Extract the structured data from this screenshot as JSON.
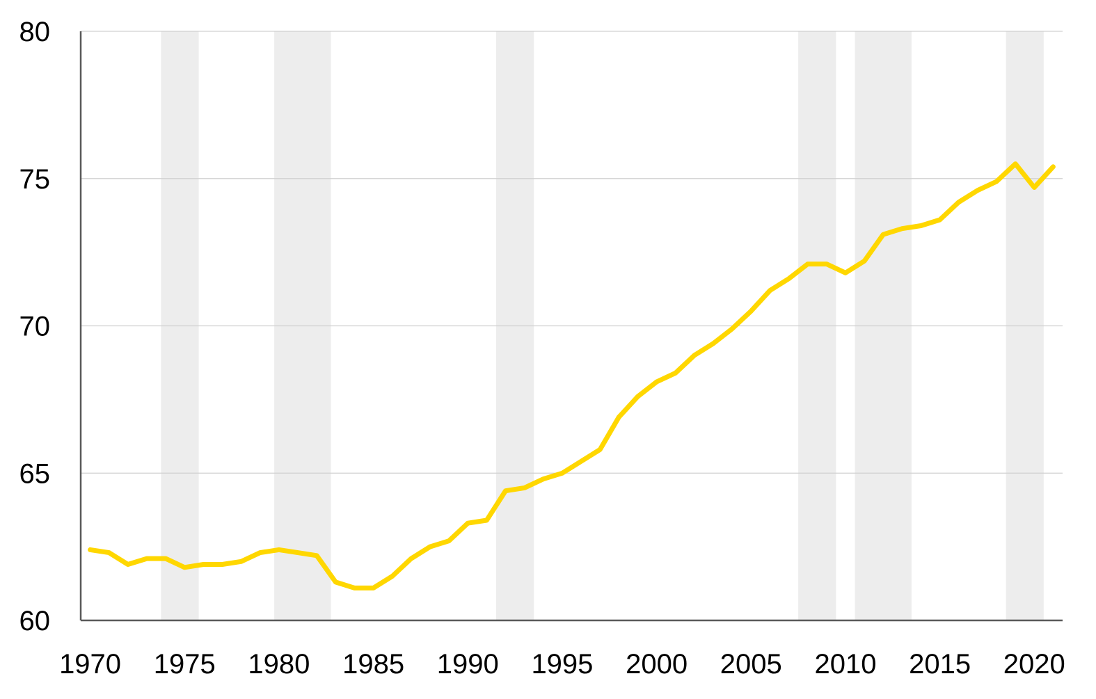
{
  "chart_data": {
    "type": "line",
    "title": "",
    "xlabel": "",
    "ylabel": "",
    "xlim": [
      1969.5,
      2021.5
    ],
    "ylim": [
      60,
      80
    ],
    "yticks": [
      60,
      65,
      70,
      75,
      80
    ],
    "xticks": [
      1970,
      1975,
      1980,
      1985,
      1990,
      1995,
      2000,
      2005,
      2010,
      2015,
      2020
    ],
    "grid": "horizontal",
    "legend": "none",
    "line_color": "#FFD700",
    "shade_color": "#EDEDED",
    "shaded_periods": [
      [
        1973.75,
        1975.75
      ],
      [
        1979.75,
        1982.75
      ],
      [
        1991.5,
        1993.5
      ],
      [
        2007.5,
        2009.5
      ],
      [
        2010.5,
        2013.5
      ],
      [
        2018.5,
        2020.5
      ]
    ],
    "series": [
      {
        "x": [
          1970,
          1971,
          1972,
          1973,
          1974,
          1975,
          1976,
          1977,
          1978,
          1979,
          1980,
          1981,
          1982,
          1983,
          1984,
          1985,
          1986,
          1987,
          1988,
          1989,
          1990,
          1991,
          1992,
          1993,
          1994,
          1995,
          1996,
          1997,
          1998,
          1999,
          2000,
          2001,
          2002,
          2003,
          2004,
          2005,
          2006,
          2007,
          2008,
          2009,
          2010,
          2011,
          2012,
          2013,
          2014,
          2015,
          2016,
          2017,
          2018,
          2019,
          2020,
          2021
        ],
        "values": [
          62.4,
          62.3,
          61.9,
          62.1,
          62.1,
          61.8,
          61.9,
          61.9,
          62.0,
          62.3,
          62.4,
          62.3,
          62.2,
          61.3,
          61.1,
          61.1,
          61.5,
          62.1,
          62.5,
          62.7,
          63.3,
          63.4,
          64.4,
          64.5,
          64.8,
          65.0,
          65.4,
          65.8,
          66.9,
          67.6,
          68.1,
          68.4,
          69.0,
          69.4,
          69.9,
          70.5,
          71.2,
          71.6,
          72.1,
          72.1,
          71.8,
          72.2,
          73.1,
          73.3,
          73.4,
          73.6,
          74.2,
          74.6,
          74.9,
          75.5,
          74.7,
          75.4
        ]
      }
    ]
  }
}
